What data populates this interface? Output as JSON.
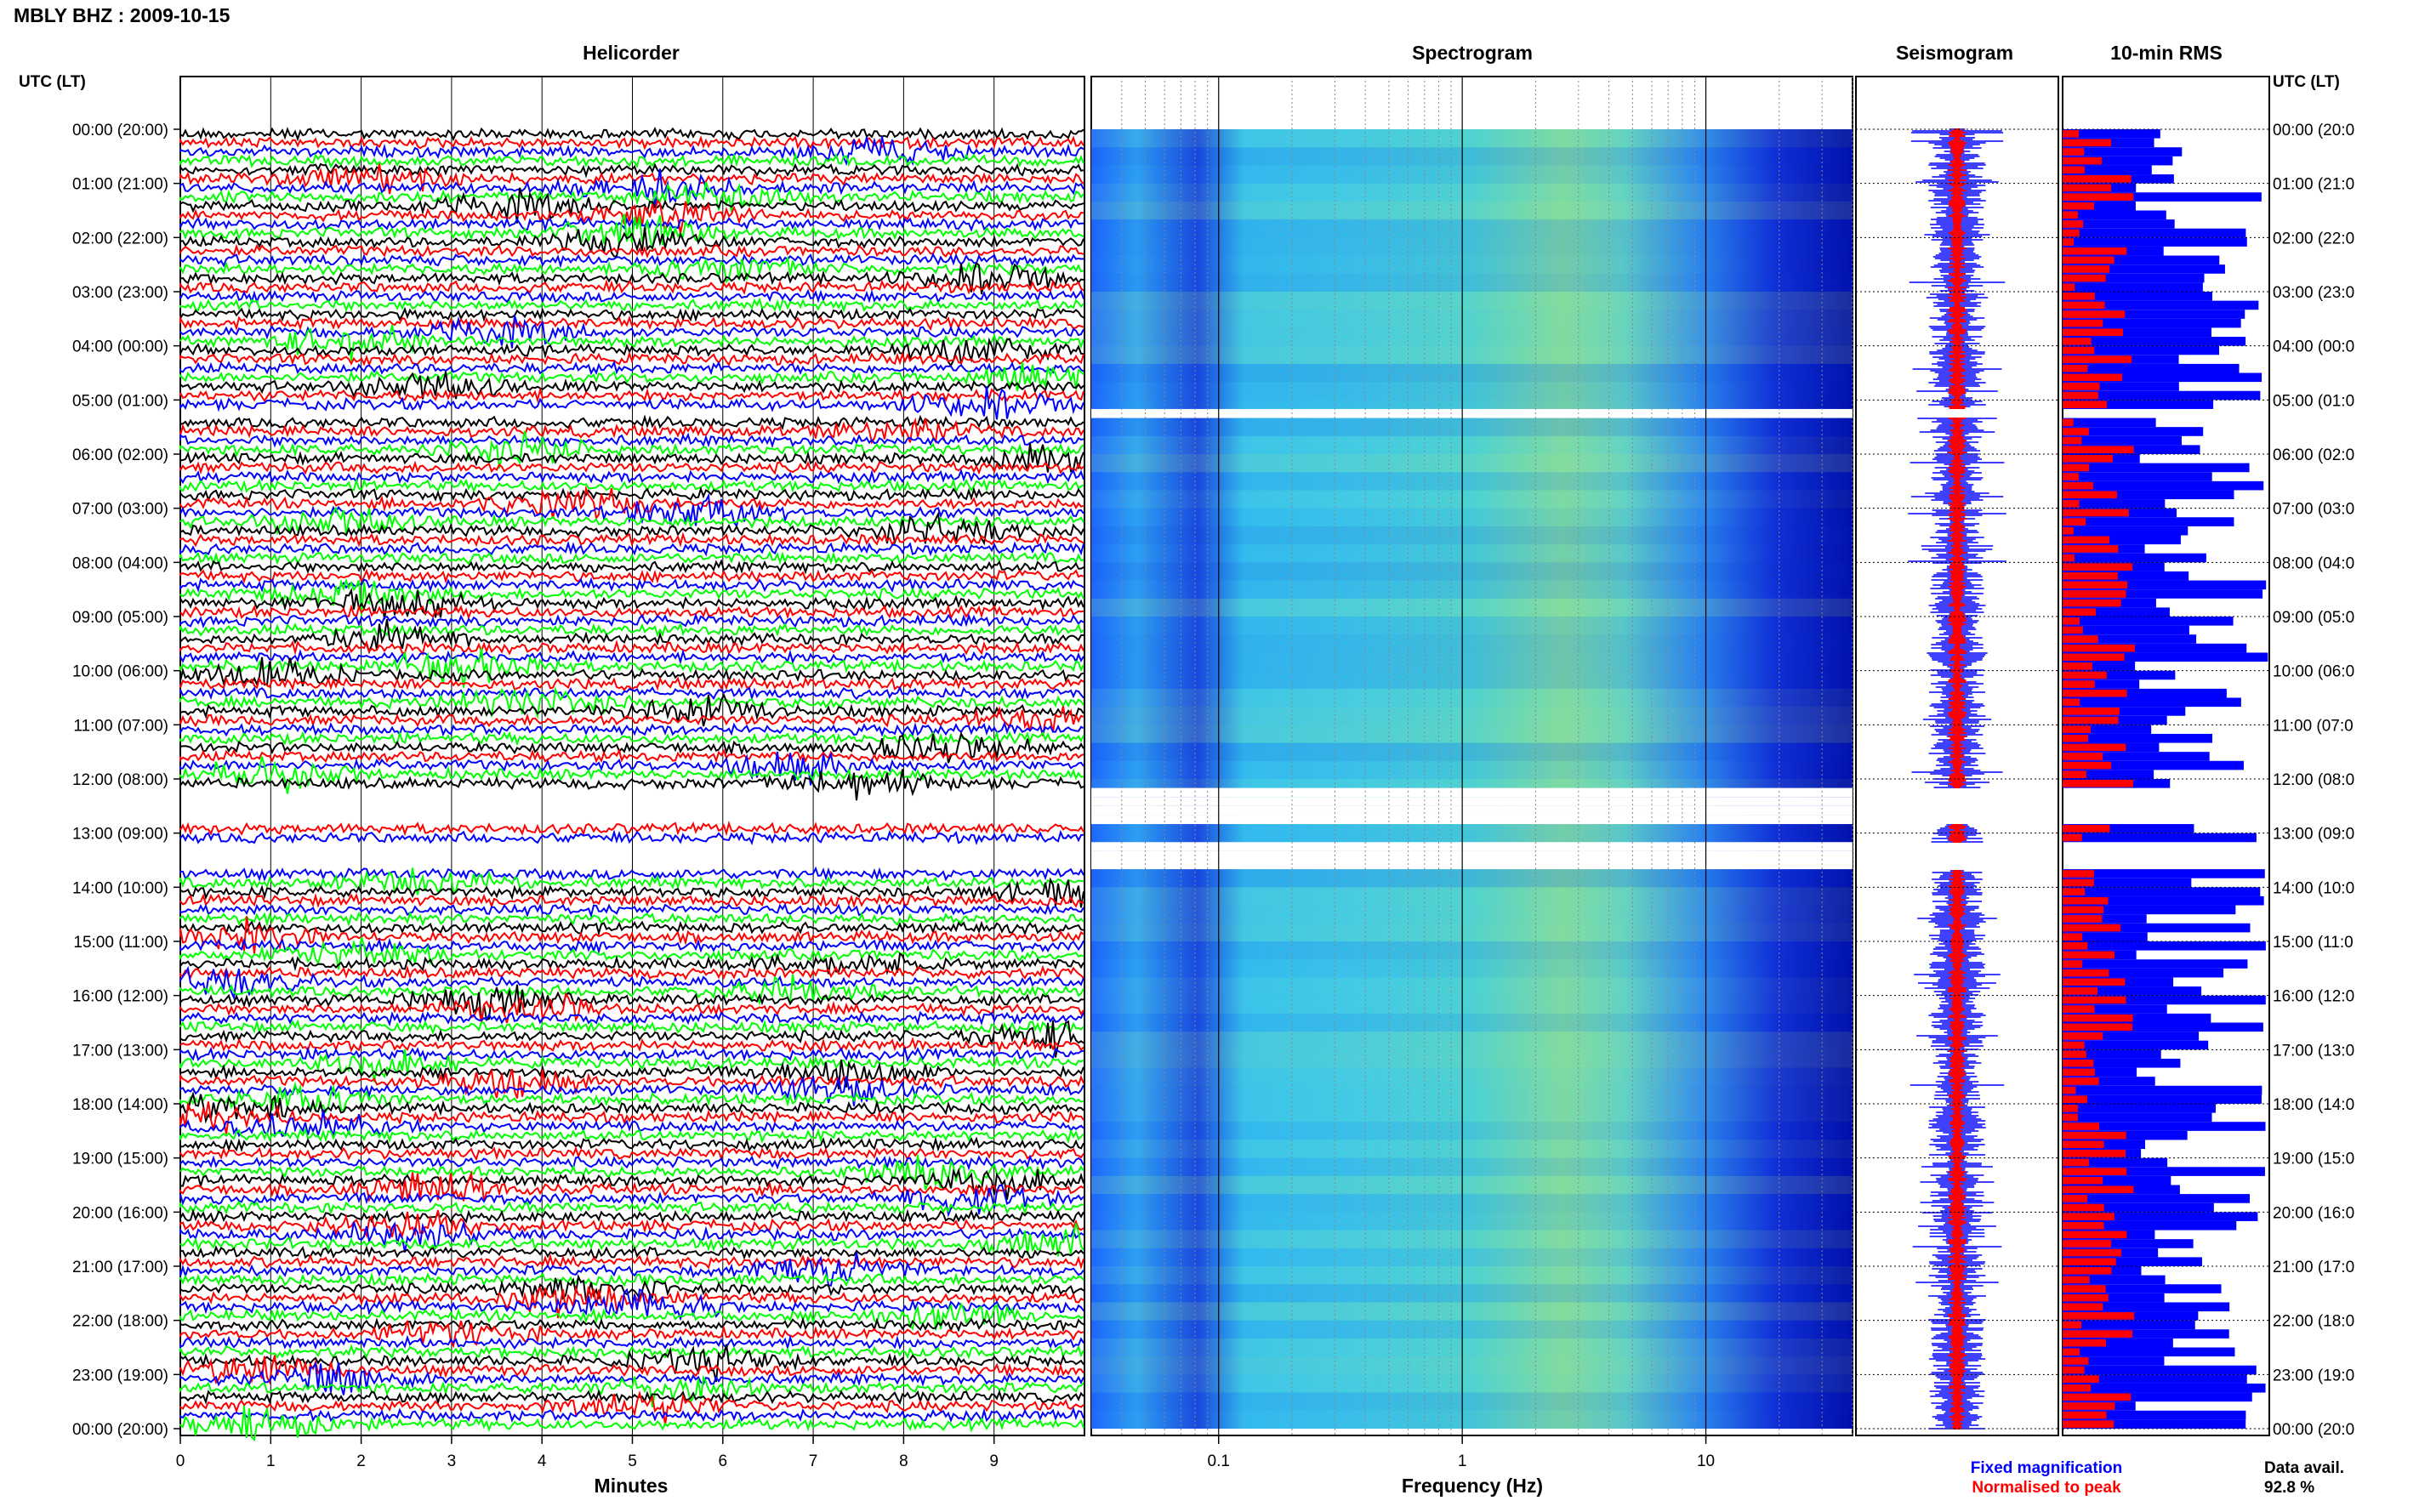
{
  "title": "MBLY BHZ : 2009-10-15",
  "panels": {
    "helicorder": "Helicorder",
    "spectrogram": "Spectrogram",
    "seismogram": "Seismogram",
    "rms": "10-min RMS"
  },
  "axis_label_left": "UTC (LT)",
  "axis_label_right": "UTC (LT)",
  "time_labels": [
    "00:00 (20:00)",
    "01:00 (21:00)",
    "02:00 (22:00)",
    "03:00 (23:00)",
    "04:00 (00:00)",
    "05:00 (01:00)",
    "06:00 (02:00)",
    "07:00 (03:00)",
    "08:00 (04:00)",
    "09:00 (05:00)",
    "10:00 (06:00)",
    "11:00 (07:00)",
    "12:00 (08:00)",
    "13:00 (09:00)",
    "14:00 (10:00)",
    "15:00 (11:00)",
    "16:00 (12:00)",
    "17:00 (13:00)",
    "18:00 (14:00)",
    "19:00 (15:00)",
    "20:00 (16:00)",
    "21:00 (17:00)",
    "22:00 (18:00)",
    "23:00 (19:00)",
    "00:00 (20:00)"
  ],
  "time_labels_right": [
    "00:00 (20:0",
    "01:00 (21:0",
    "02:00 (22:0",
    "03:00 (23:0",
    "04:00 (00:0",
    "05:00 (01:0",
    "06:00 (02:0",
    "07:00 (03:0",
    "08:00 (04:0",
    "09:00 (05:0",
    "10:00 (06:0",
    "11:00 (07:0",
    "12:00 (08:0",
    "13:00 (09:0",
    "14:00 (10:0",
    "15:00 (11:0",
    "16:00 (12:0",
    "17:00 (13:0",
    "18:00 (14:0",
    "19:00 (15:0",
    "20:00 (16:0",
    "21:00 (17:0",
    "22:00 (18:0",
    "23:00 (19:0",
    "00:00 (20:0"
  ],
  "chart_data": [
    {
      "type": "helicorder",
      "title": "Helicorder",
      "xlabel": "Minutes",
      "xticks": [
        0,
        1,
        2,
        3,
        4,
        5,
        6,
        7,
        8,
        9
      ],
      "xlim": [
        0,
        10
      ],
      "trace_colors": [
        "#000000",
        "#ff0000",
        "#0000ff",
        "#00ff00"
      ],
      "gaps_utc": [
        "05:10-05:20",
        "12:10-12:50",
        "13:10-13:40"
      ]
    },
    {
      "type": "heatmap",
      "title": "Spectrogram",
      "xlabel": "Frequency (Hz)",
      "xscale": "log",
      "xticks": [
        "0.1",
        "1",
        "10"
      ],
      "xlim": [
        0.03,
        40
      ]
    },
    {
      "type": "line",
      "title": "Seismogram",
      "legend": [
        "Fixed magnification",
        "Normalised to peak"
      ],
      "colors": [
        "#0000ff",
        "#ff0000"
      ]
    },
    {
      "type": "bar",
      "orientation": "horizontal",
      "title": "10-min RMS",
      "colors": [
        "#0000ff",
        "#ff0000"
      ]
    }
  ],
  "legend": {
    "fixed": "Fixed magnification",
    "normalised": "Normalised to peak",
    "fixed_color": "#0000ff",
    "normalised_color": "#ff0000"
  },
  "data_avail": {
    "label": "Data avail.",
    "value": "92.8 %"
  }
}
